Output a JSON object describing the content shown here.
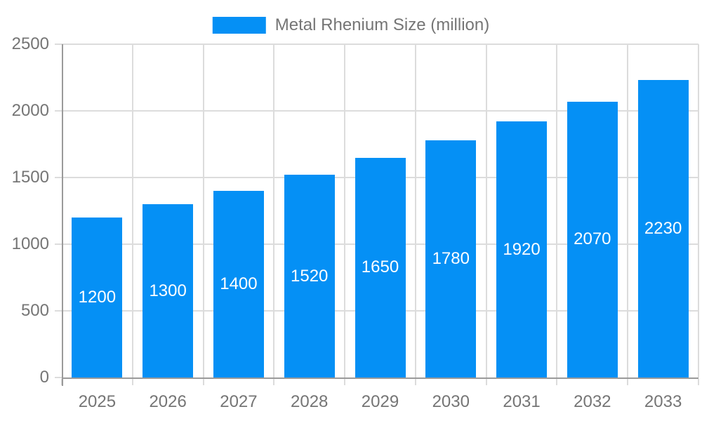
{
  "chart_data": {
    "type": "bar",
    "title": "Metal Rhenium Size (million)",
    "categories": [
      "2025",
      "2026",
      "2027",
      "2028",
      "2029",
      "2030",
      "2031",
      "2032",
      "2033"
    ],
    "series": [
      {
        "name": "Metal Rhenium Size (million)",
        "values": [
          1200,
          1300,
          1400,
          1520,
          1650,
          1780,
          1920,
          2070,
          2230
        ]
      }
    ],
    "bar_labels": [
      "1200",
      "1300",
      "1400",
      "1520",
      "1650",
      "1780",
      "1920",
      "2070",
      "2230"
    ],
    "xlabel": "",
    "ylabel": "",
    "ylim": [
      0,
      2500
    ],
    "yticks": [
      0,
      500,
      1000,
      1500,
      2000,
      2500
    ],
    "grid": true,
    "legend_position": "top-center",
    "colors": {
      "bar": "#0590F5",
      "axis": "#9A9A9A",
      "grid": "#DCDCDC",
      "text": "#757575",
      "bar_label": "#FFFFFF",
      "background": "#FFFFFF"
    }
  }
}
